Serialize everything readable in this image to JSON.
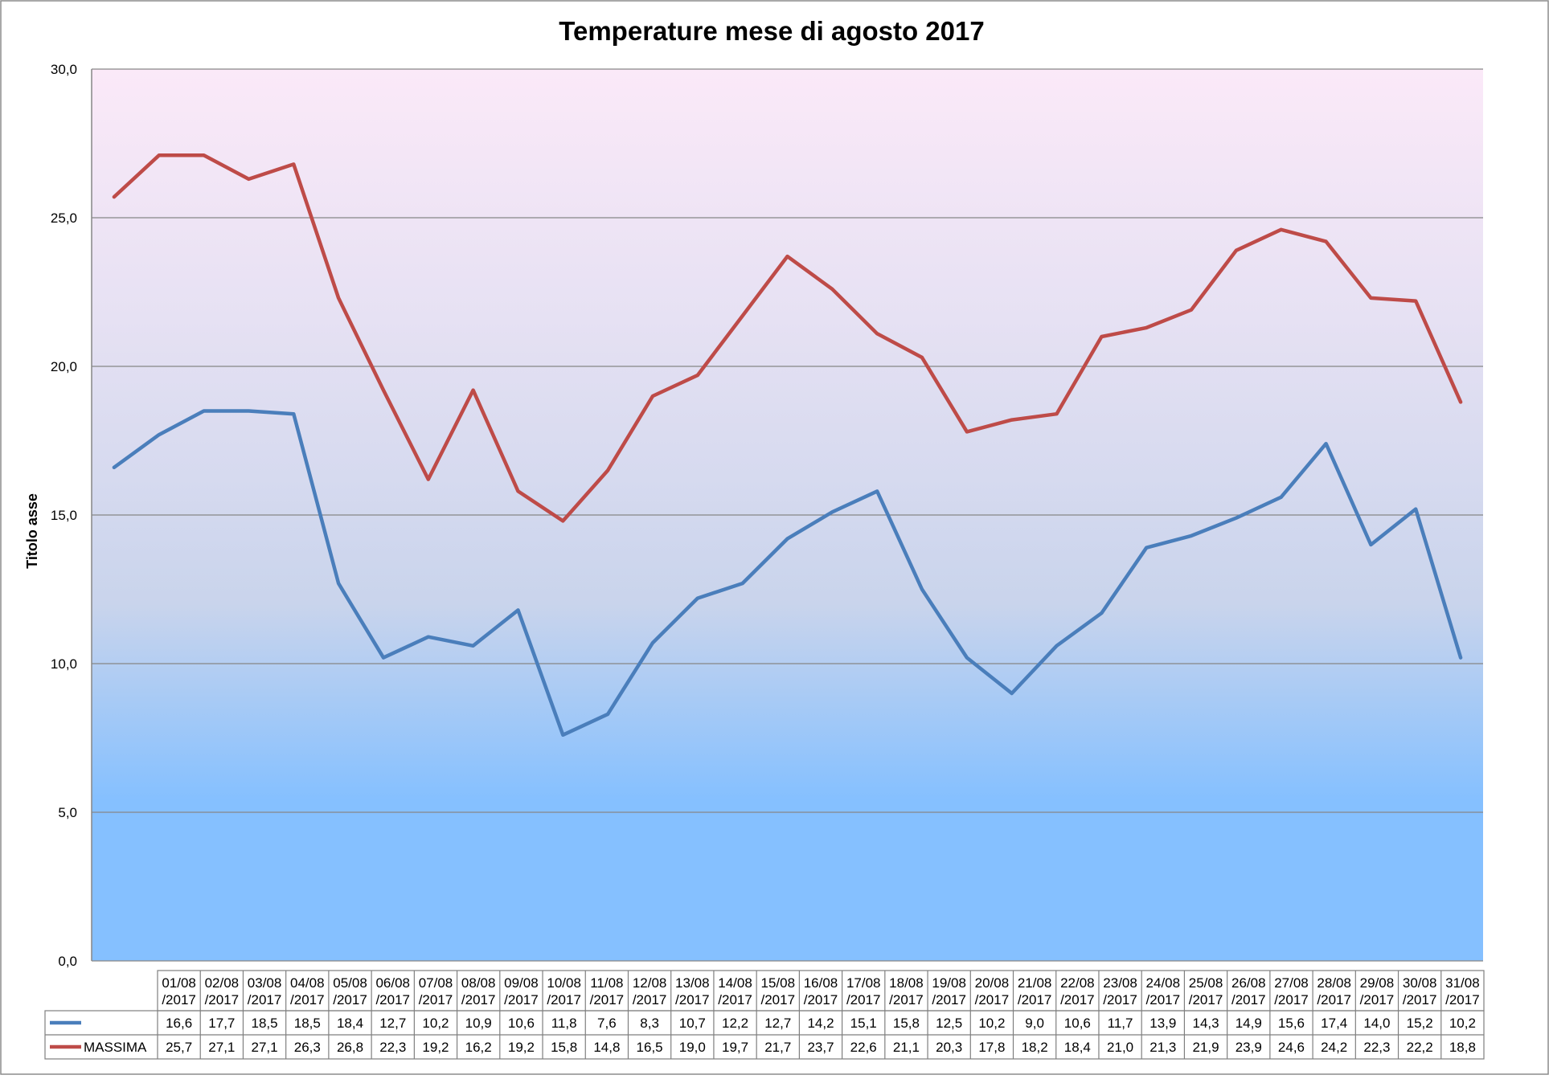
{
  "chart_data": {
    "type": "line",
    "title": "Temperature mese di agosto 2017",
    "ylabel": "Titolo asse",
    "ylim": [
      0,
      30
    ],
    "yticks": [
      "0,0",
      "5,0",
      "10,0",
      "15,0",
      "20,0",
      "25,0",
      "30,0"
    ],
    "grid": true,
    "legend": "data-table",
    "categories": [
      "01/08/2017",
      "02/08/2017",
      "03/08/2017",
      "04/08/2017",
      "05/08/2017",
      "06/08/2017",
      "07/08/2017",
      "08/08/2017",
      "09/08/2017",
      "10/08/2017",
      "11/08/2017",
      "12/08/2017",
      "13/08/2017",
      "14/08/2017",
      "15/08/2017",
      "16/08/2017",
      "17/08/2017",
      "18/08/2017",
      "19/08/2017",
      "20/08/2017",
      "21/08/2017",
      "22/08/2017",
      "23/08/2017",
      "24/08/2017",
      "25/08/2017",
      "26/08/2017",
      "27/08/2017",
      "28/08/2017",
      "29/08/2017",
      "30/08/2017",
      "31/08/2017"
    ],
    "series": [
      {
        "name": "",
        "color": "#4a7ebb",
        "values": [
          16.6,
          17.7,
          18.5,
          18.5,
          18.4,
          12.7,
          10.2,
          10.9,
          10.6,
          11.8,
          7.6,
          8.3,
          10.7,
          12.2,
          12.7,
          14.2,
          15.1,
          15.8,
          12.5,
          10.2,
          9.0,
          10.6,
          11.7,
          13.9,
          14.3,
          14.9,
          15.6,
          17.4,
          14.0,
          15.2,
          10.2
        ],
        "labels": [
          "16,6",
          "17,7",
          "18,5",
          "18,5",
          "18,4",
          "12,7",
          "10,2",
          "10,9",
          "10,6",
          "11,8",
          "7,6",
          "8,3",
          "10,7",
          "12,2",
          "12,7",
          "14,2",
          "15,1",
          "15,8",
          "12,5",
          "10,2",
          "9,0",
          "10,6",
          "11,7",
          "13,9",
          "14,3",
          "14,9",
          "15,6",
          "17,4",
          "14,0",
          "15,2",
          "10,2"
        ]
      },
      {
        "name": "MASSIMA",
        "color": "#be4b48",
        "values": [
          25.7,
          27.1,
          27.1,
          26.3,
          26.8,
          22.3,
          19.2,
          16.2,
          19.2,
          15.8,
          14.8,
          16.5,
          19.0,
          19.7,
          21.7,
          23.7,
          22.6,
          21.1,
          20.3,
          17.8,
          18.2,
          18.4,
          21.0,
          21.3,
          21.9,
          23.9,
          24.6,
          24.2,
          22.3,
          22.2,
          18.8
        ],
        "labels": [
          "25,7",
          "27,1",
          "27,1",
          "26,3",
          "26,8",
          "22,3",
          "19,2",
          "16,2",
          "19,2",
          "15,8",
          "14,8",
          "16,5",
          "19,0",
          "19,7",
          "21,7",
          "23,7",
          "22,6",
          "21,1",
          "20,3",
          "17,8",
          "18,2",
          "18,4",
          "21,0",
          "21,3",
          "21,9",
          "23,9",
          "24,6",
          "24,2",
          "22,3",
          "22,2",
          "18,8"
        ]
      }
    ],
    "background_gradient": [
      "#fbe9f8",
      "#e6e1f3",
      "#c9d4ec",
      "#85c0ff"
    ]
  }
}
